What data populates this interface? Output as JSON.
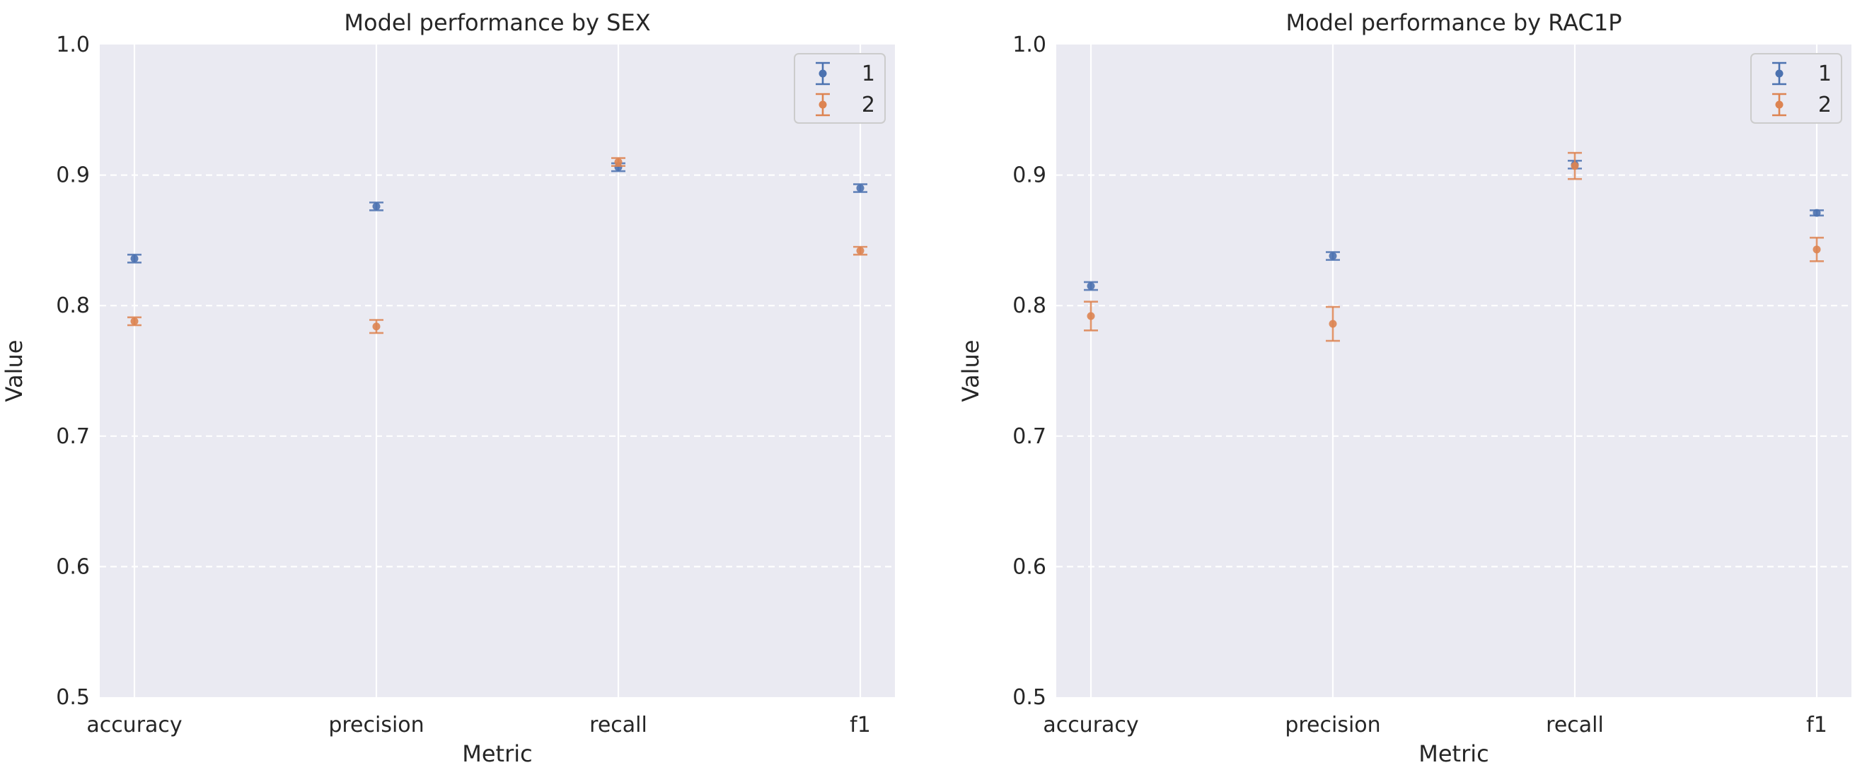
{
  "chart_data": [
    {
      "type": "scatter",
      "title": "Model performance by SEX",
      "xlabel": "Metric",
      "ylabel": "Value",
      "categories": [
        "accuracy",
        "precision",
        "recall",
        "f1"
      ],
      "ylim": [
        0.5,
        1.0
      ],
      "yticks": [
        "0.5",
        "0.6",
        "0.7",
        "0.8",
        "0.9",
        "1.0"
      ],
      "grid": true,
      "legend_position": "top-right",
      "series": [
        {
          "name": "1",
          "color": "#4c72b0",
          "values": [
            0.836,
            0.876,
            0.906,
            0.89
          ],
          "errors": [
            0.003,
            0.003,
            0.003,
            0.003
          ]
        },
        {
          "name": "2",
          "color": "#dd8452",
          "values": [
            0.788,
            0.784,
            0.91,
            0.842
          ],
          "errors": [
            0.003,
            0.005,
            0.003,
            0.003
          ]
        }
      ]
    },
    {
      "type": "scatter",
      "title": "Model performance by RAC1P",
      "xlabel": "Metric",
      "ylabel": "Value",
      "categories": [
        "accuracy",
        "precision",
        "recall",
        "f1"
      ],
      "ylim": [
        0.5,
        1.0
      ],
      "yticks": [
        "0.5",
        "0.6",
        "0.7",
        "0.8",
        "0.9",
        "1.0"
      ],
      "grid": true,
      "legend_position": "top-right",
      "series": [
        {
          "name": "1",
          "color": "#4c72b0",
          "values": [
            0.815,
            0.838,
            0.908,
            0.871
          ],
          "errors": [
            0.003,
            0.003,
            0.003,
            0.002
          ]
        },
        {
          "name": "2",
          "color": "#dd8452",
          "values": [
            0.792,
            0.786,
            0.907,
            0.843
          ],
          "errors": [
            0.011,
            0.013,
            0.01,
            0.009
          ]
        }
      ]
    }
  ]
}
